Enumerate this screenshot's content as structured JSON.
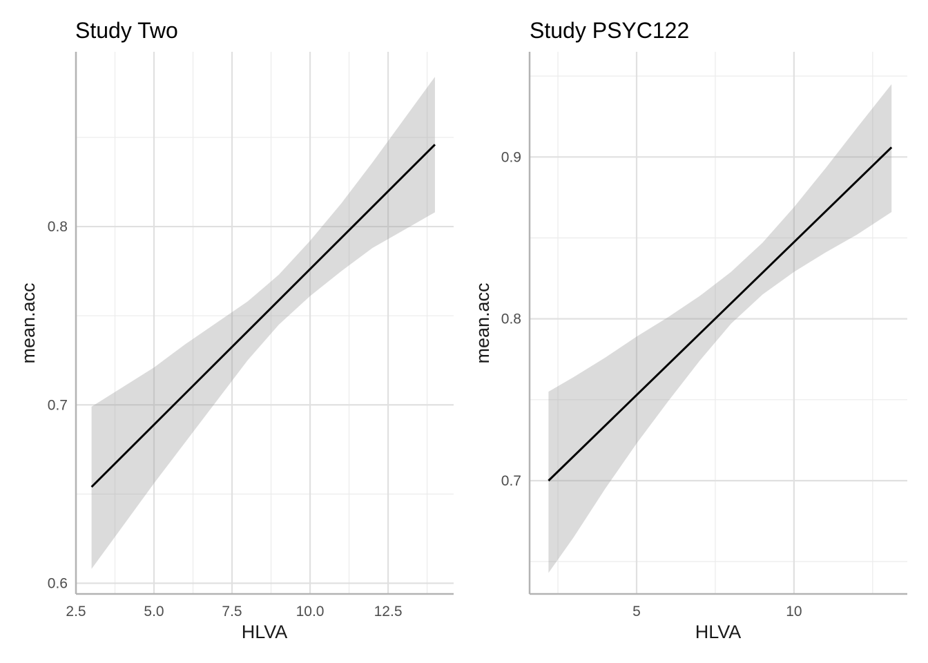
{
  "chart_data": [
    {
      "type": "line",
      "title": "Study Two",
      "xlabel": "HLVA",
      "ylabel": "mean.acc",
      "xlim": [
        2.5,
        14.6
      ],
      "ylim": [
        0.594,
        0.898
      ],
      "x_ticks": [
        2.5,
        5.0,
        7.5,
        10.0,
        12.5
      ],
      "x_tick_labels": [
        "2.5",
        "5.0",
        "7.5",
        "10.0",
        "12.5"
      ],
      "y_ticks": [
        0.6,
        0.7,
        0.8
      ],
      "y_tick_labels": [
        "0.6",
        "0.7",
        "0.8"
      ],
      "grid": true,
      "series": [
        {
          "x": [
            3,
            14
          ],
          "y": [
            0.654,
            0.846
          ],
          "ci_x": [
            3,
            4,
            5,
            6,
            7,
            8,
            9,
            10,
            11,
            12,
            13,
            14
          ],
          "ci_lower": [
            0.608,
            0.632,
            0.656,
            0.679,
            0.702,
            0.725,
            0.745,
            0.761,
            0.775,
            0.788,
            0.798,
            0.808
          ],
          "ci_upper": [
            0.699,
            0.71,
            0.721,
            0.734,
            0.746,
            0.758,
            0.773,
            0.792,
            0.813,
            0.836,
            0.86,
            0.884
          ]
        }
      ]
    },
    {
      "type": "line",
      "title": "Study PSYC122",
      "xlabel": "HLVA",
      "ylabel": "mean.acc",
      "xlim": [
        1.6,
        13.6
      ],
      "ylim": [
        0.63,
        0.965
      ],
      "x_ticks": [
        5,
        10
      ],
      "x_tick_labels": [
        "5",
        "10"
      ],
      "y_ticks": [
        0.7,
        0.8,
        0.9
      ],
      "y_tick_labels": [
        "0.7",
        "0.8",
        "0.9"
      ],
      "grid": true,
      "series": [
        {
          "x": [
            2.2,
            13.1
          ],
          "y": [
            0.7,
            0.906
          ],
          "ci_x": [
            2.2,
            3,
            4,
            5,
            6,
            7,
            8,
            9,
            10,
            11,
            12,
            13.1
          ],
          "ci_lower": [
            0.643,
            0.665,
            0.695,
            0.723,
            0.749,
            0.774,
            0.797,
            0.815,
            0.829,
            0.841,
            0.852,
            0.866
          ],
          "ci_upper": [
            0.755,
            0.764,
            0.776,
            0.789,
            0.801,
            0.814,
            0.829,
            0.847,
            0.869,
            0.893,
            0.918,
            0.945
          ]
        }
      ]
    }
  ]
}
